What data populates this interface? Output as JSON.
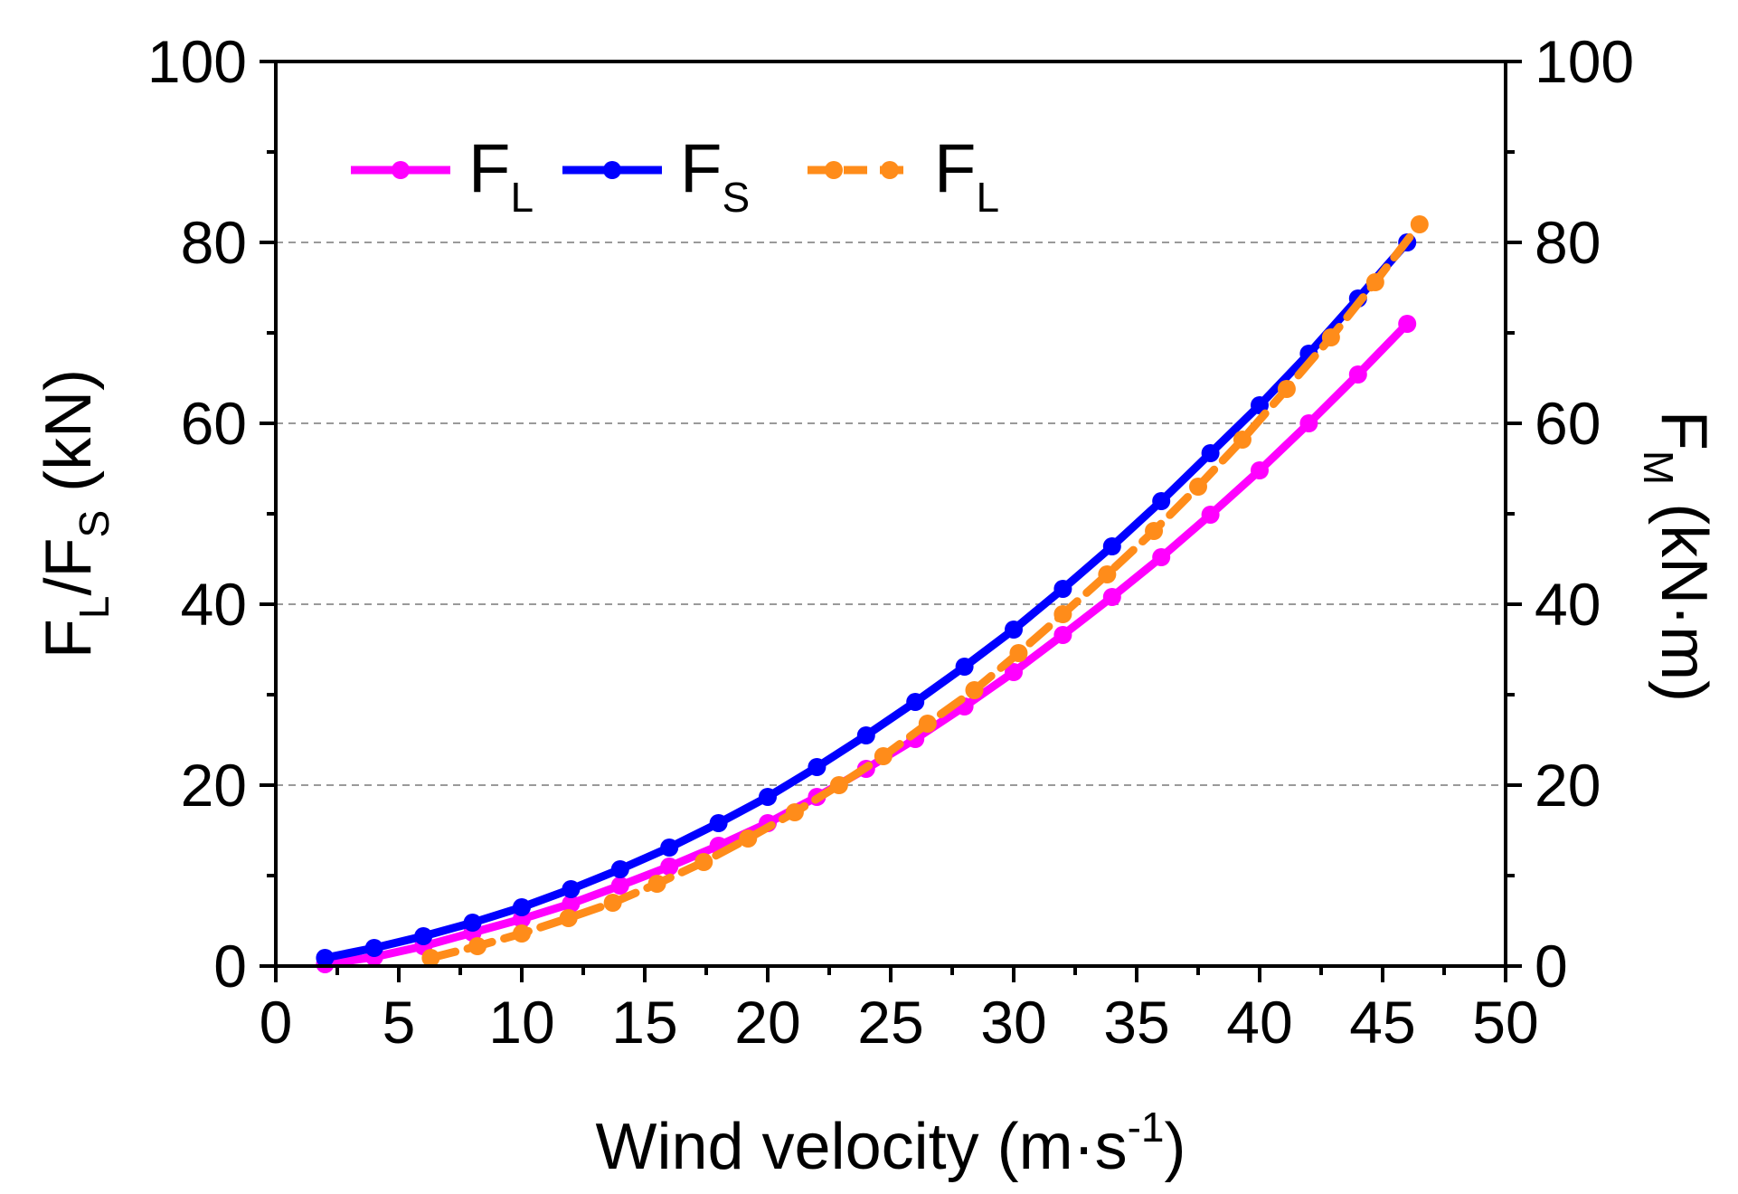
{
  "chart_data": {
    "type": "line",
    "title": "",
    "xlabel": "Wind velocity (m·s",
    "xlabel_sup": "-1",
    "xlabel_end": ")",
    "ylabel_left": {
      "main1": "F",
      "sub1": "L",
      "main2": "/F",
      "sub2": "S",
      "rest": " (kN)"
    },
    "ylabel_right": {
      "main": "F",
      "sub": "M",
      "rest": " (kN·m)"
    },
    "xlim": [
      0,
      50
    ],
    "ylim_left": [
      0,
      100
    ],
    "ylim_right": [
      0,
      100
    ],
    "xticks": [
      0,
      5,
      10,
      15,
      20,
      25,
      30,
      35,
      40,
      45,
      50
    ],
    "yticks": [
      0,
      20,
      40,
      60,
      80,
      100
    ],
    "gridlines_y": [
      20,
      40,
      60,
      80
    ],
    "grid": "dashed horizontal",
    "legend_position": "top-left",
    "series": [
      {
        "name": "F",
        "sub": "L",
        "axis": "left",
        "color": "#FF00FF",
        "dashed": false,
        "x": [
          2,
          4,
          6,
          8,
          10,
          12,
          14,
          16,
          18,
          20,
          22,
          24,
          26,
          28,
          30,
          32,
          34,
          36,
          38,
          40,
          42,
          44,
          46
        ],
        "y": [
          0.2,
          1.0,
          2.2,
          3.7,
          5.2,
          6.9,
          8.9,
          11.0,
          13.3,
          15.8,
          18.7,
          21.8,
          25.1,
          28.7,
          32.5,
          36.6,
          40.8,
          45.2,
          49.9,
          54.8,
          60.0,
          65.4,
          71.0
        ]
      },
      {
        "name": "F",
        "sub": "S",
        "axis": "left",
        "color": "#0000FF",
        "dashed": false,
        "x": [
          2,
          4,
          6,
          8,
          10,
          12,
          14,
          16,
          18,
          20,
          22,
          24,
          26,
          28,
          30,
          32,
          34,
          36,
          38,
          40,
          42,
          44,
          46
        ],
        "y": [
          0.9,
          2.0,
          3.3,
          4.8,
          6.5,
          8.5,
          10.7,
          13.1,
          15.8,
          18.7,
          22.0,
          25.5,
          29.2,
          33.1,
          37.2,
          41.7,
          46.4,
          51.4,
          56.7,
          62.0,
          67.7,
          73.8,
          80.0
        ]
      },
      {
        "name": "F",
        "sub": "L",
        "axis": "right",
        "color": "#FF8C1A",
        "dashed": true,
        "x": [
          6.3,
          8.2,
          10.0,
          11.9,
          13.7,
          15.5,
          17.4,
          19.2,
          21.1,
          22.9,
          24.7,
          26.5,
          28.4,
          30.2,
          32.0,
          33.8,
          35.7,
          37.5,
          39.3,
          41.1,
          42.9,
          44.7,
          46.5
        ],
        "y": [
          0.9,
          2.2,
          3.6,
          5.3,
          7.0,
          9.1,
          11.5,
          14.1,
          17.0,
          20.0,
          23.2,
          26.8,
          30.5,
          34.6,
          38.9,
          43.3,
          48.1,
          53.0,
          58.2,
          63.8,
          69.5,
          75.6,
          82.0
        ]
      }
    ]
  }
}
